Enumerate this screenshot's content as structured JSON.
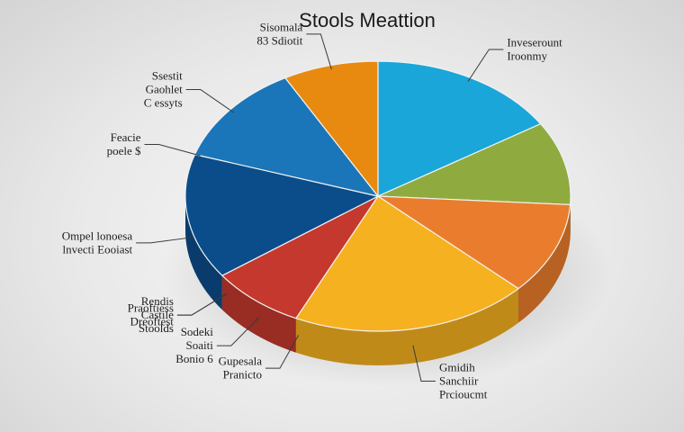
{
  "chart_data": {
    "type": "pie",
    "title": "Stools Meattion",
    "slices": [
      {
        "lines": [
          "Inveserount",
          "Iroonmy"
        ],
        "value": 16,
        "color": "#1aa6d9"
      },
      {
        "lines": [],
        "value": 10,
        "color": "#8fab40"
      },
      {
        "lines": [],
        "value": 11,
        "color": "#ea7d2d"
      },
      {
        "lines": [
          "Gmidih",
          "Sanchiir",
          "Prcioucmt"
        ],
        "value": 20,
        "color": "#f6b120"
      },
      {
        "lines": [
          "Gupesala",
          "Pranicto"
        ],
        "value": 0,
        "color": "#f6b120"
      },
      {
        "lines": [
          "Sodeki",
          "Soaiti",
          "Bonio 6"
        ],
        "value": 8,
        "color": "#c4382d"
      },
      {
        "lines": [
          "Rendis",
          "Castile",
          "Stoolds"
        ],
        "value": 0,
        "color": "#c4382d"
      },
      {
        "lines": [
          "Praoftiess",
          "Dreoftest"
        ],
        "value": 0,
        "color": "#c4382d"
      },
      {
        "lines": [
          "Ompel lonoesa",
          "lnvecti Eooiast"
        ],
        "value": 15,
        "color": "#0b4d8b"
      },
      {
        "lines": [
          "Feacie",
          "poele $"
        ],
        "value": 0,
        "color": "#0b4d8b"
      },
      {
        "lines": [
          "Ssestit",
          "Gaohlet",
          "C essyts"
        ],
        "value": 12,
        "color": "#1a76b8"
      },
      {
        "lines": [
          "Sisomala",
          "83 Sdiotit"
        ],
        "value": 8,
        "color": "#e88a10"
      }
    ]
  }
}
